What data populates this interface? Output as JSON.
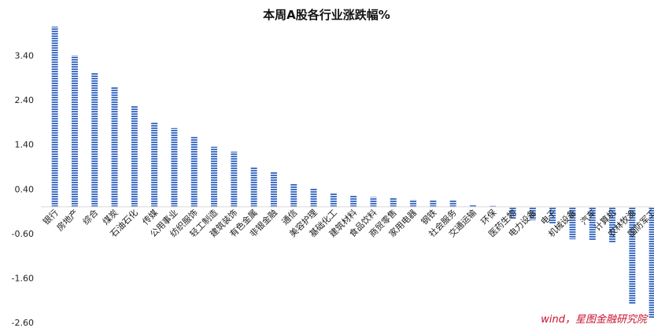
{
  "chart_data": {
    "type": "bar",
    "title": "本周A股各行业涨跌幅%",
    "xlabel": "",
    "ylabel": "",
    "ylim": [
      -2.6,
      4.4
    ],
    "yticks": [
      "3.40",
      "2.40",
      "1.40",
      "0.40",
      "-0.60",
      "-1.60",
      "-2.60"
    ],
    "grid": false,
    "legend": "none",
    "categories": [
      "银行",
      "房地产",
      "综合",
      "煤炭",
      "石油石化",
      "传媒",
      "公用事业",
      "纺织服饰",
      "轻工制造",
      "建筑装饰",
      "有色金属",
      "非银金融",
      "通信",
      "美容护理",
      "基础化工",
      "建筑材料",
      "食品饮料",
      "商贸零售",
      "家用电器",
      "钢铁",
      "社会服务",
      "交通运输",
      "环保",
      "医药生物",
      "电力设备",
      "电子",
      "机械设备",
      "汽车",
      "计算机",
      "农林牧渔",
      "国防军工"
    ],
    "values": [
      4.05,
      3.4,
      3.02,
      2.7,
      2.27,
      1.9,
      1.77,
      1.57,
      1.35,
      1.24,
      0.9,
      0.78,
      0.52,
      0.42,
      0.3,
      0.25,
      0.22,
      0.21,
      0.16,
      0.15,
      0.14,
      0.05,
      0.02,
      -0.28,
      -0.3,
      -0.39,
      -0.73,
      -0.75,
      -0.8,
      -2.18,
      -2.5
    ],
    "bar_color": "#4472c4"
  },
  "source_note": "wind，星图金融研究院"
}
